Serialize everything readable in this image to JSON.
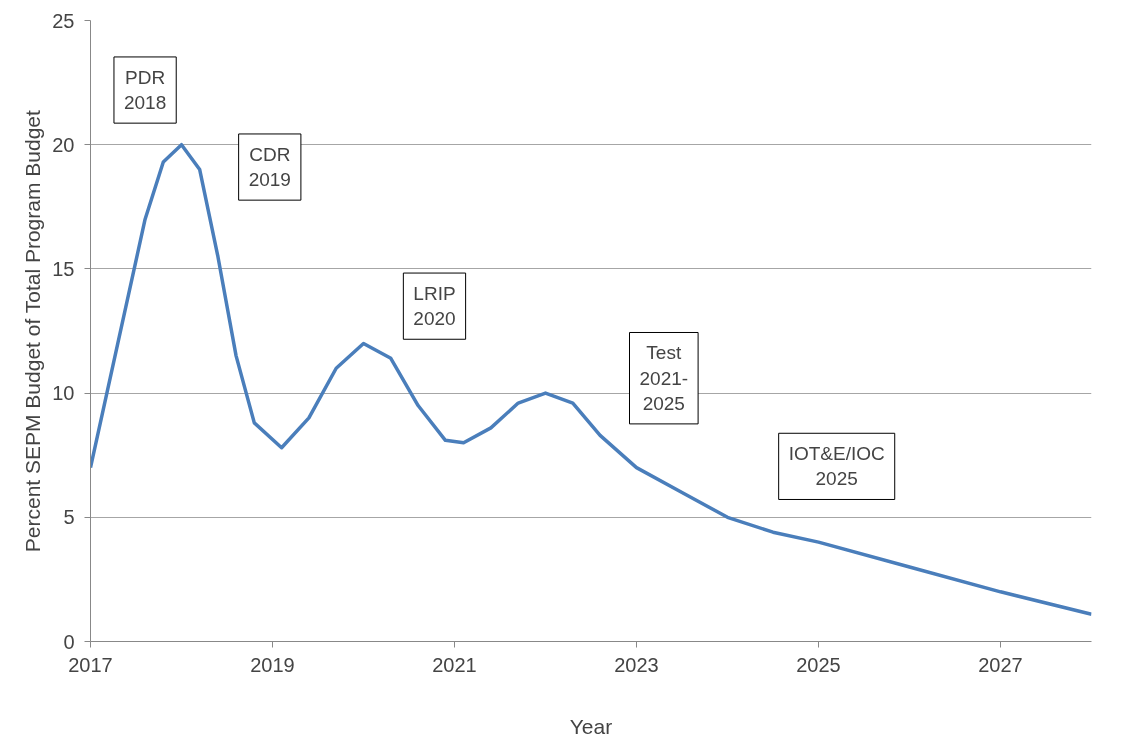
{
  "chart_data": {
    "type": "line",
    "xlabel": "Year",
    "ylabel": "Percent SEPM Budget of Total Program Budget",
    "series": [
      {
        "color": "#4a7ebb",
        "x": [
          2017,
          2017.3,
          2017.6,
          2017.8,
          2018,
          2018.2,
          2018.4,
          2018.6,
          2018.8,
          2019.1,
          2019.4,
          2019.7,
          2020,
          2020.3,
          2020.6,
          2020.9,
          2021.1,
          2021.4,
          2021.7,
          2022,
          2022.3,
          2022.6,
          2023,
          2023.5,
          2024,
          2024.5,
          2025,
          2026,
          2027,
          2028
        ],
        "values": [
          7,
          12,
          17,
          19.3,
          20,
          19,
          15.5,
          11.5,
          8.8,
          7.8,
          9,
          11,
          12,
          11.4,
          9.5,
          8.1,
          8,
          8.6,
          9.6,
          10,
          9.6,
          8.3,
          7,
          6,
          5,
          4.4,
          4,
          3,
          2,
          1.1
        ]
      }
    ],
    "annotations": [
      "PDR\n2018",
      "CDR\n2019",
      "LRIP\n2020",
      "Test\n2021-\n2025",
      "IOT&E/IOC\n2025"
    ],
    "xlim": [
      2017,
      2028
    ],
    "ylim": [
      0,
      25
    ],
    "xticks": [
      2017,
      2019,
      2021,
      2023,
      2025,
      2027
    ],
    "yticks": [
      0,
      5,
      10,
      15,
      20,
      25
    ],
    "grid": "y",
    "marker": "none",
    "line_style": "solid"
  }
}
